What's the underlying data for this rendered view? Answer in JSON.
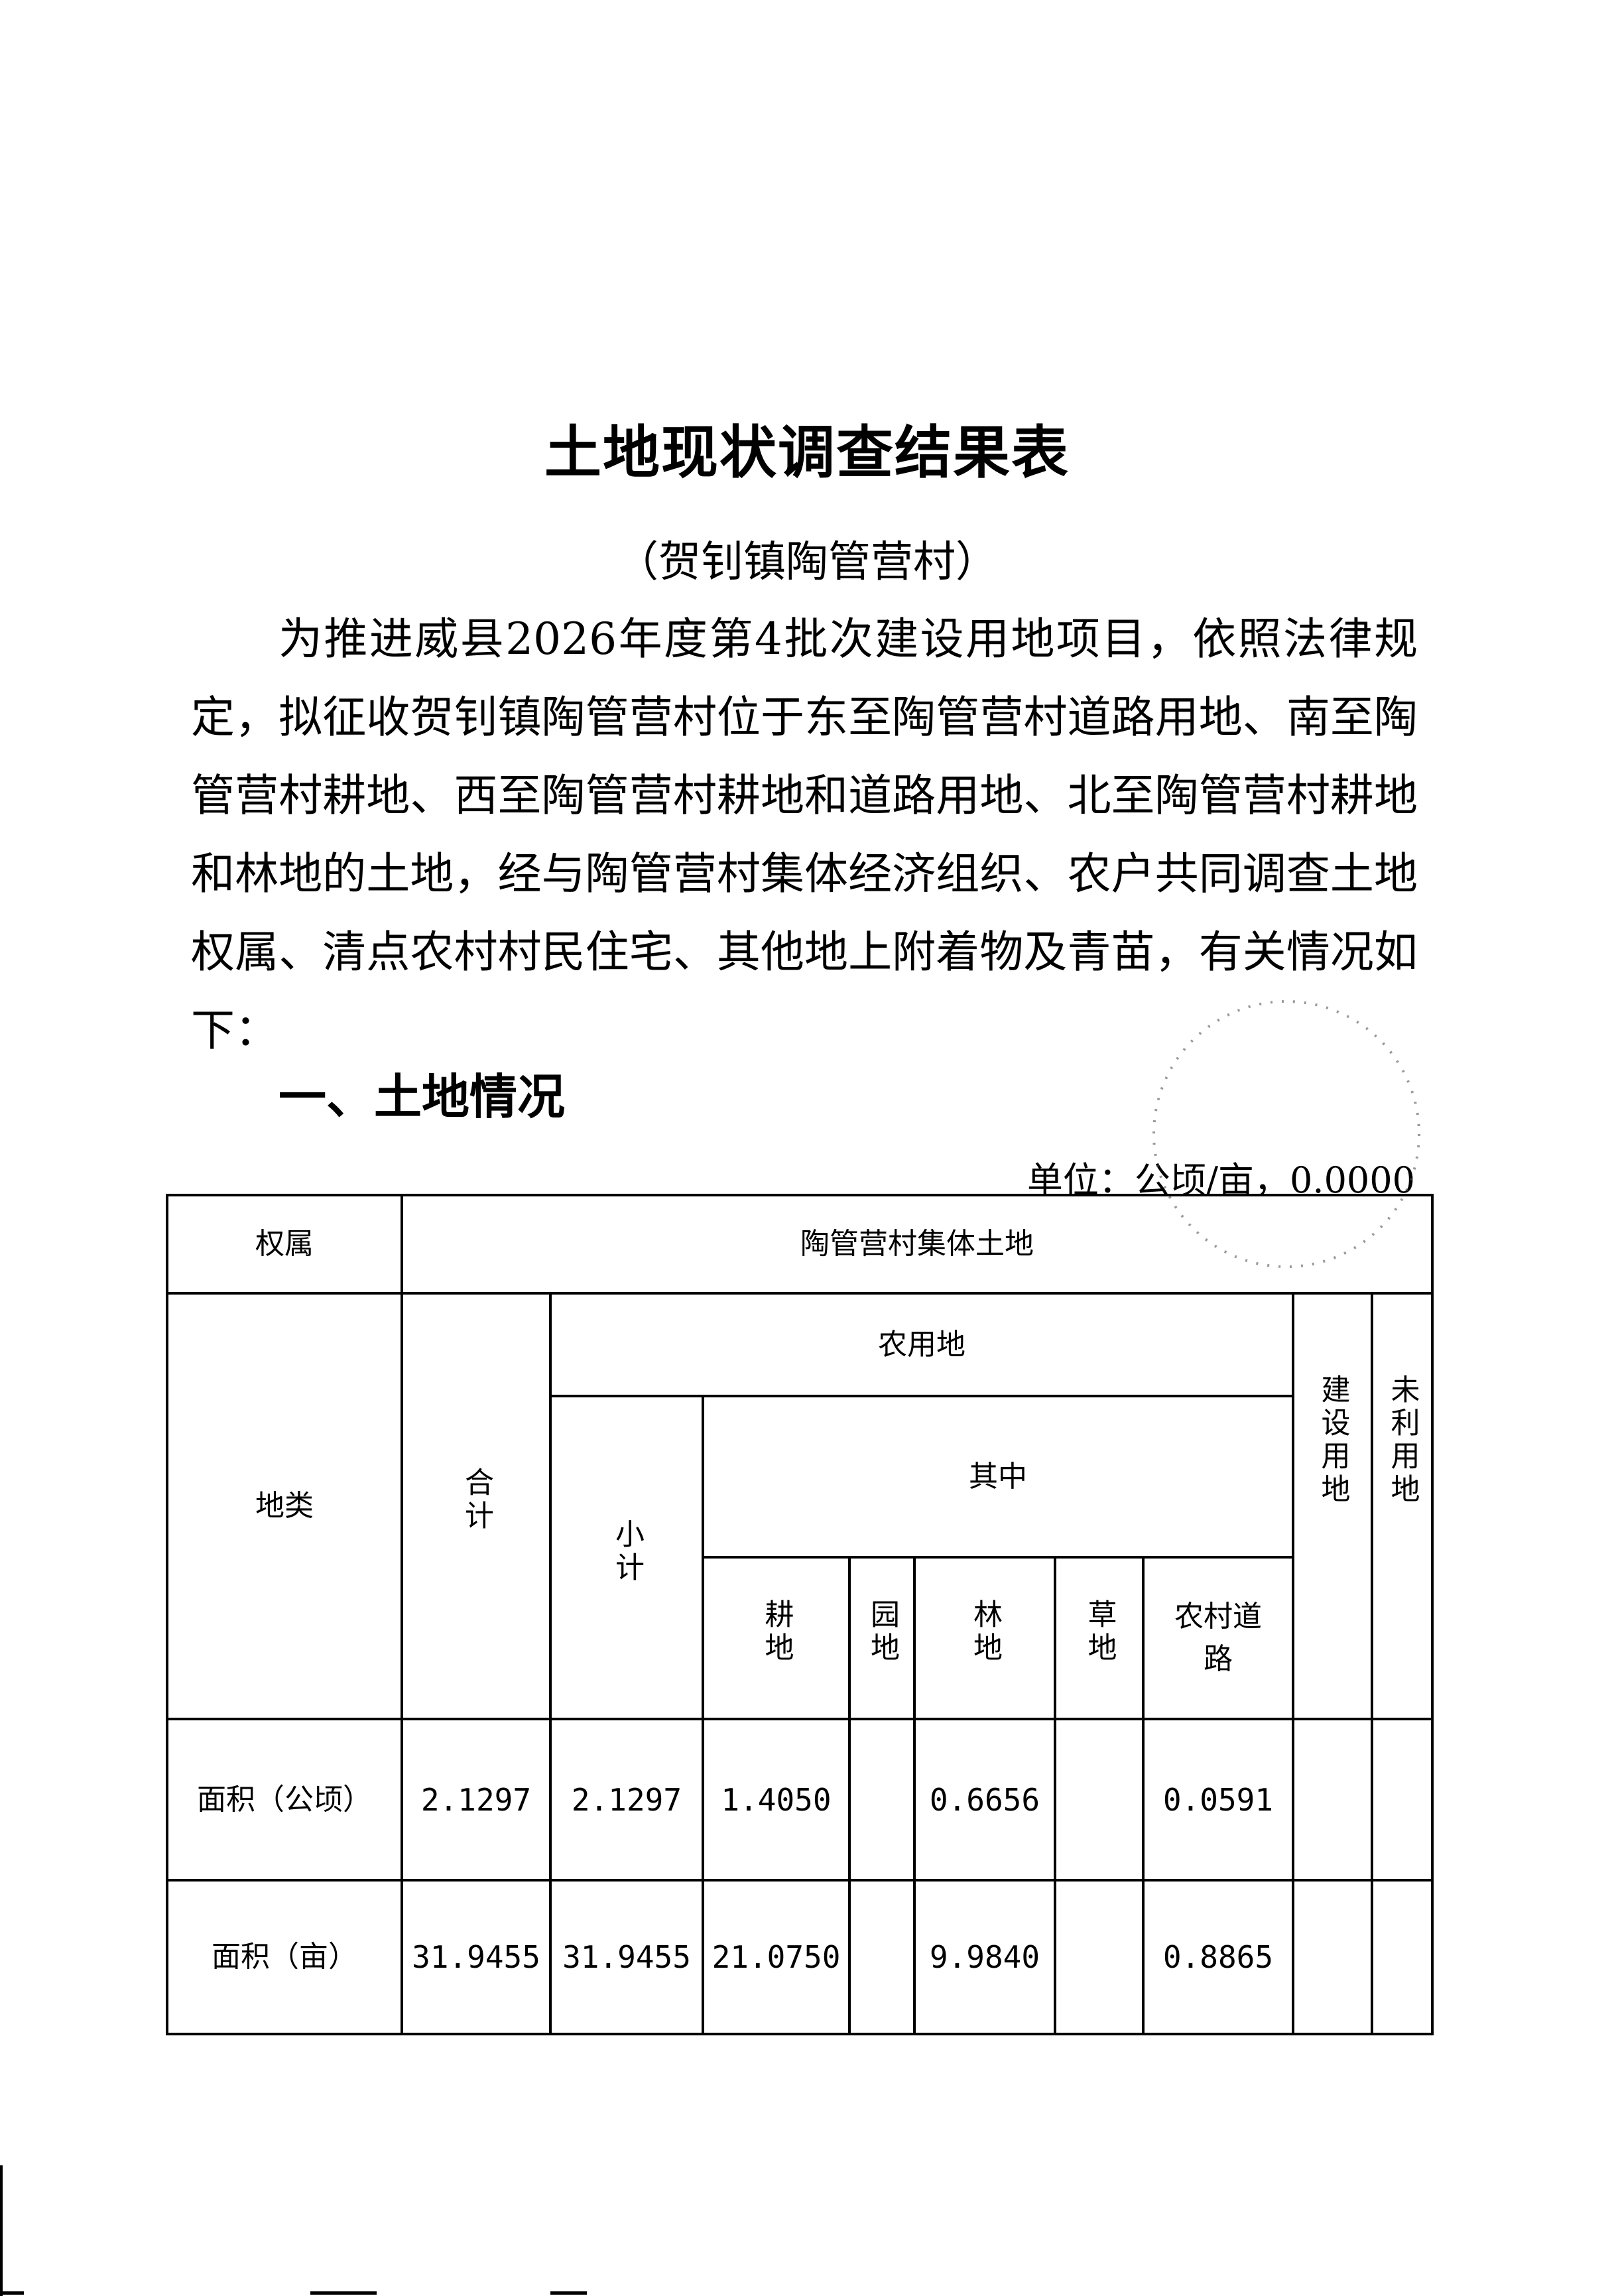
{
  "title": "土地现状调查结果表",
  "subtitle": "（贺钊镇陶管营村）",
  "paragraph": "为推进威县2026年度第4批次建设用地项目，依照法律规定，拟征收贺钊镇陶管营村位于东至陶管营村道路用地、南至陶管营村耕地、西至陶管营村耕地和道路用地、北至陶管营村耕地和林地的土地，经与陶管营村集体经济组织、农户共同调查土地权属、清点农村村民住宅、其他地上附着物及青苗，有关情况如下：",
  "section_heading": "一、土地情况",
  "unit": "单位：公顷/亩，0.0000",
  "table": {
    "ownership_label": "权属",
    "ownership_value": "陶管营村集体土地",
    "landtype_label": "地类",
    "total": "合计",
    "agricultural": "农用地",
    "subtotal": "小计",
    "of_which": "其中",
    "cultivated": "耕地",
    "garden": "园地",
    "forest": "林地",
    "grassland": "草地",
    "rural_road": "农村道路",
    "construction": "建设用地",
    "unused": "未利用地",
    "rows": [
      {
        "label": "面积（公顷）",
        "total": "2.1297",
        "subtotal": "2.1297",
        "cultivated": "1.4050",
        "garden": "",
        "forest": "0.6656",
        "grassland": "",
        "rural_road": "0.0591",
        "construction": "",
        "unused": ""
      },
      {
        "label": "面积（亩）",
        "total": "31.9455",
        "subtotal": "31.9455",
        "cultivated": "21.0750",
        "garden": "",
        "forest": "9.9840",
        "grassland": "",
        "rural_road": "0.8865",
        "construction": "",
        "unused": ""
      }
    ]
  }
}
